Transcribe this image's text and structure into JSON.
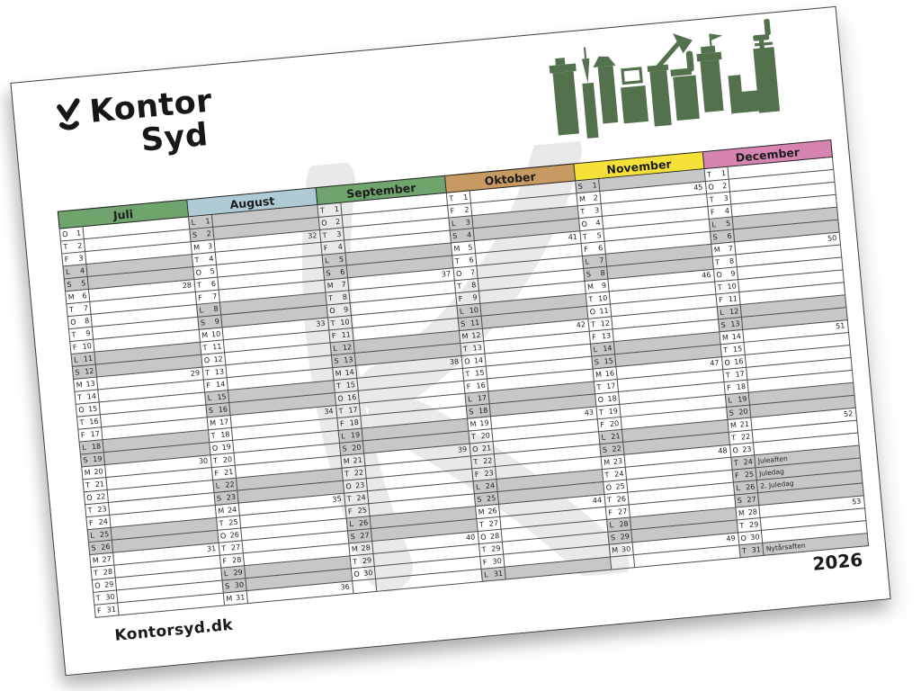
{
  "brand": {
    "name_line1": "Kontor",
    "name_line2": "Syd"
  },
  "page": {
    "website": "Kontorsyd.dk",
    "year": "2026"
  },
  "icons": {
    "logo_mark": "kontor-syd-k-mark",
    "skyline": "office-furniture-skyline",
    "watermark": "kontor-syd-k-watermark"
  },
  "colors": {
    "weekend_fill": "#c7c7c7",
    "grid_line": "#4d4d4d",
    "skyline_green": "#53714d",
    "watermark_grey": "#e9e9e9",
    "logo_black": "#171717",
    "juli": "#6fa46c",
    "august": "#aecbd5",
    "september": "#6fa46c",
    "oktober": "#c79a62",
    "november": "#f6e139",
    "december": "#d685b1"
  },
  "months": [
    {
      "name": "Juli",
      "color": "#6fa46c",
      "days": [
        {
          "w": "O",
          "d": 1
        },
        {
          "w": "T",
          "d": 2
        },
        {
          "w": "F",
          "d": 3
        },
        {
          "w": "L",
          "d": 4,
          "g": 1
        },
        {
          "w": "S",
          "d": 5,
          "g": 1
        },
        {
          "w": "M",
          "d": 6,
          "wk": 28
        },
        {
          "w": "T",
          "d": 7
        },
        {
          "w": "O",
          "d": 8
        },
        {
          "w": "T",
          "d": 9
        },
        {
          "w": "F",
          "d": 10
        },
        {
          "w": "L",
          "d": 11,
          "g": 1
        },
        {
          "w": "S",
          "d": 12,
          "g": 1
        },
        {
          "w": "M",
          "d": 13,
          "wk": 29
        },
        {
          "w": "T",
          "d": 14
        },
        {
          "w": "O",
          "d": 15
        },
        {
          "w": "T",
          "d": 16
        },
        {
          "w": "F",
          "d": 17
        },
        {
          "w": "L",
          "d": 18,
          "g": 1
        },
        {
          "w": "S",
          "d": 19,
          "g": 1
        },
        {
          "w": "M",
          "d": 20,
          "wk": 30
        },
        {
          "w": "T",
          "d": 21
        },
        {
          "w": "O",
          "d": 22
        },
        {
          "w": "T",
          "d": 23
        },
        {
          "w": "F",
          "d": 24
        },
        {
          "w": "L",
          "d": 25,
          "g": 1
        },
        {
          "w": "S",
          "d": 26,
          "g": 1
        },
        {
          "w": "M",
          "d": 27,
          "wk": 31
        },
        {
          "w": "T",
          "d": 28
        },
        {
          "w": "O",
          "d": 29
        },
        {
          "w": "T",
          "d": 30
        },
        {
          "w": "F",
          "d": 31
        }
      ]
    },
    {
      "name": "August",
      "color": "#aecbd5",
      "days": [
        {
          "w": "L",
          "d": 1,
          "g": 1
        },
        {
          "w": "S",
          "d": 2,
          "g": 1
        },
        {
          "w": "M",
          "d": 3,
          "wk": 32
        },
        {
          "w": "T",
          "d": 4
        },
        {
          "w": "O",
          "d": 5
        },
        {
          "w": "T",
          "d": 6
        },
        {
          "w": "F",
          "d": 7
        },
        {
          "w": "L",
          "d": 8,
          "g": 1
        },
        {
          "w": "S",
          "d": 9,
          "g": 1
        },
        {
          "w": "M",
          "d": 10,
          "wk": 33
        },
        {
          "w": "T",
          "d": 11
        },
        {
          "w": "O",
          "d": 12
        },
        {
          "w": "T",
          "d": 13
        },
        {
          "w": "F",
          "d": 14
        },
        {
          "w": "L",
          "d": 15,
          "g": 1
        },
        {
          "w": "S",
          "d": 16,
          "g": 1
        },
        {
          "w": "M",
          "d": 17,
          "wk": 34
        },
        {
          "w": "T",
          "d": 18
        },
        {
          "w": "O",
          "d": 19
        },
        {
          "w": "T",
          "d": 20
        },
        {
          "w": "F",
          "d": 21
        },
        {
          "w": "L",
          "d": 22,
          "g": 1
        },
        {
          "w": "S",
          "d": 23,
          "g": 1
        },
        {
          "w": "M",
          "d": 24,
          "wk": 35
        },
        {
          "w": "T",
          "d": 25
        },
        {
          "w": "O",
          "d": 26
        },
        {
          "w": "T",
          "d": 27
        },
        {
          "w": "F",
          "d": 28
        },
        {
          "w": "L",
          "d": 29,
          "g": 1
        },
        {
          "w": "S",
          "d": 30,
          "g": 1
        },
        {
          "w": "M",
          "d": 31,
          "wk": 36
        }
      ]
    },
    {
      "name": "September",
      "color": "#6fa46c",
      "days": [
        {
          "w": "T",
          "d": 1
        },
        {
          "w": "O",
          "d": 2
        },
        {
          "w": "T",
          "d": 3
        },
        {
          "w": "F",
          "d": 4
        },
        {
          "w": "L",
          "d": 5,
          "g": 1
        },
        {
          "w": "S",
          "d": 6,
          "g": 1
        },
        {
          "w": "M",
          "d": 7,
          "wk": 37
        },
        {
          "w": "T",
          "d": 8
        },
        {
          "w": "O",
          "d": 9
        },
        {
          "w": "T",
          "d": 10
        },
        {
          "w": "F",
          "d": 11
        },
        {
          "w": "L",
          "d": 12,
          "g": 1
        },
        {
          "w": "S",
          "d": 13,
          "g": 1
        },
        {
          "w": "M",
          "d": 14,
          "wk": 38
        },
        {
          "w": "T",
          "d": 15
        },
        {
          "w": "O",
          "d": 16
        },
        {
          "w": "T",
          "d": 17
        },
        {
          "w": "F",
          "d": 18
        },
        {
          "w": "L",
          "d": 19,
          "g": 1
        },
        {
          "w": "S",
          "d": 20,
          "g": 1
        },
        {
          "w": "M",
          "d": 21,
          "wk": 39
        },
        {
          "w": "T",
          "d": 22
        },
        {
          "w": "O",
          "d": 23
        },
        {
          "w": "T",
          "d": 24
        },
        {
          "w": "F",
          "d": 25
        },
        {
          "w": "L",
          "d": 26,
          "g": 1
        },
        {
          "w": "S",
          "d": 27,
          "g": 1
        },
        {
          "w": "M",
          "d": 28,
          "wk": 40
        },
        {
          "w": "T",
          "d": 29
        },
        {
          "w": "O",
          "d": 30
        },
        {
          "w": "",
          "d": "",
          "empty": 1
        }
      ]
    },
    {
      "name": "Oktober",
      "color": "#c79a62",
      "days": [
        {
          "w": "T",
          "d": 1
        },
        {
          "w": "F",
          "d": 2
        },
        {
          "w": "L",
          "d": 3,
          "g": 1
        },
        {
          "w": "S",
          "d": 4,
          "g": 1
        },
        {
          "w": "M",
          "d": 5,
          "wk": 41
        },
        {
          "w": "T",
          "d": 6
        },
        {
          "w": "O",
          "d": 7
        },
        {
          "w": "T",
          "d": 8
        },
        {
          "w": "F",
          "d": 9
        },
        {
          "w": "L",
          "d": 10,
          "g": 1
        },
        {
          "w": "S",
          "d": 11,
          "g": 1
        },
        {
          "w": "M",
          "d": 12,
          "wk": 42
        },
        {
          "w": "T",
          "d": 13
        },
        {
          "w": "O",
          "d": 14
        },
        {
          "w": "T",
          "d": 15
        },
        {
          "w": "F",
          "d": 16
        },
        {
          "w": "L",
          "d": 17,
          "g": 1
        },
        {
          "w": "S",
          "d": 18,
          "g": 1
        },
        {
          "w": "M",
          "d": 19,
          "wk": 43
        },
        {
          "w": "T",
          "d": 20
        },
        {
          "w": "O",
          "d": 21
        },
        {
          "w": "T",
          "d": 22
        },
        {
          "w": "F",
          "d": 23
        },
        {
          "w": "L",
          "d": 24,
          "g": 1
        },
        {
          "w": "S",
          "d": 25,
          "g": 1
        },
        {
          "w": "M",
          "d": 26,
          "wk": 44
        },
        {
          "w": "T",
          "d": 27
        },
        {
          "w": "O",
          "d": 28
        },
        {
          "w": "T",
          "d": 29
        },
        {
          "w": "F",
          "d": 30
        },
        {
          "w": "L",
          "d": 31,
          "g": 1
        }
      ]
    },
    {
      "name": "November",
      "color": "#f6e139",
      "days": [
        {
          "w": "S",
          "d": 1,
          "g": 1
        },
        {
          "w": "M",
          "d": 2,
          "wk": 45
        },
        {
          "w": "T",
          "d": 3
        },
        {
          "w": "O",
          "d": 4
        },
        {
          "w": "T",
          "d": 5
        },
        {
          "w": "F",
          "d": 6
        },
        {
          "w": "L",
          "d": 7,
          "g": 1
        },
        {
          "w": "S",
          "d": 8,
          "g": 1
        },
        {
          "w": "M",
          "d": 9,
          "wk": 46
        },
        {
          "w": "T",
          "d": 10
        },
        {
          "w": "O",
          "d": 11
        },
        {
          "w": "T",
          "d": 12
        },
        {
          "w": "F",
          "d": 13
        },
        {
          "w": "L",
          "d": 14,
          "g": 1
        },
        {
          "w": "S",
          "d": 15,
          "g": 1
        },
        {
          "w": "M",
          "d": 16,
          "wk": 47
        },
        {
          "w": "T",
          "d": 17
        },
        {
          "w": "O",
          "d": 18
        },
        {
          "w": "T",
          "d": 19
        },
        {
          "w": "F",
          "d": 20
        },
        {
          "w": "L",
          "d": 21,
          "g": 1
        },
        {
          "w": "S",
          "d": 22,
          "g": 1
        },
        {
          "w": "M",
          "d": 23,
          "wk": 48
        },
        {
          "w": "T",
          "d": 24
        },
        {
          "w": "O",
          "d": 25
        },
        {
          "w": "T",
          "d": 26
        },
        {
          "w": "F",
          "d": 27
        },
        {
          "w": "L",
          "d": 28,
          "g": 1
        },
        {
          "w": "S",
          "d": 29,
          "g": 1
        },
        {
          "w": "M",
          "d": 30,
          "wk": 49
        },
        {
          "w": "",
          "d": "",
          "empty": 1
        }
      ]
    },
    {
      "name": "December",
      "color": "#d685b1",
      "days": [
        {
          "w": "T",
          "d": 1
        },
        {
          "w": "O",
          "d": 2
        },
        {
          "w": "T",
          "d": 3
        },
        {
          "w": "F",
          "d": 4
        },
        {
          "w": "L",
          "d": 5,
          "g": 1
        },
        {
          "w": "S",
          "d": 6,
          "g": 1
        },
        {
          "w": "M",
          "d": 7,
          "wk": 50
        },
        {
          "w": "T",
          "d": 8
        },
        {
          "w": "O",
          "d": 9
        },
        {
          "w": "T",
          "d": 10
        },
        {
          "w": "F",
          "d": 11
        },
        {
          "w": "L",
          "d": 12,
          "g": 1
        },
        {
          "w": "S",
          "d": 13,
          "g": 1
        },
        {
          "w": "M",
          "d": 14,
          "wk": 51
        },
        {
          "w": "T",
          "d": 15
        },
        {
          "w": "O",
          "d": 16
        },
        {
          "w": "T",
          "d": 17
        },
        {
          "w": "F",
          "d": 18
        },
        {
          "w": "L",
          "d": 19,
          "g": 1
        },
        {
          "w": "S",
          "d": 20,
          "g": 1
        },
        {
          "w": "M",
          "d": 21,
          "wk": 52
        },
        {
          "w": "T",
          "d": 22
        },
        {
          "w": "O",
          "d": 23
        },
        {
          "w": "T",
          "d": 24,
          "g": 1,
          "note": "Juleaften"
        },
        {
          "w": "F",
          "d": 25,
          "g": 1,
          "note": "Juledag"
        },
        {
          "w": "L",
          "d": 26,
          "g": 1,
          "note": "2. Juledag"
        },
        {
          "w": "S",
          "d": 27,
          "g": 1
        },
        {
          "w": "M",
          "d": 28,
          "wk": 53
        },
        {
          "w": "T",
          "d": 29
        },
        {
          "w": "O",
          "d": 30
        },
        {
          "w": "T",
          "d": 31,
          "g": 1,
          "note": "Nytårsaften"
        }
      ]
    }
  ]
}
